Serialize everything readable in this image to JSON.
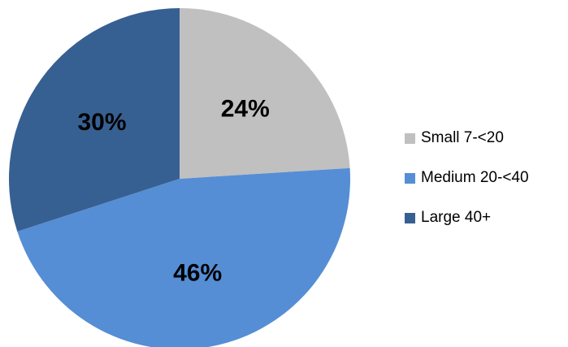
{
  "chart_data": {
    "type": "pie",
    "title": "",
    "categories": [
      "Small 7-<20",
      "Medium 20-<40",
      "Large 40+"
    ],
    "values": [
      24,
      46,
      30
    ],
    "labels": [
      "24%",
      "46%",
      "30%"
    ],
    "colors": [
      "#c0c0c0",
      "#558ed5",
      "#376092"
    ],
    "start_angle_deg": 0,
    "direction": "clockwise",
    "legend": {
      "position": "right",
      "entries": [
        "Small 7-<20",
        "Medium 20-<40",
        "Large 40+"
      ]
    }
  }
}
